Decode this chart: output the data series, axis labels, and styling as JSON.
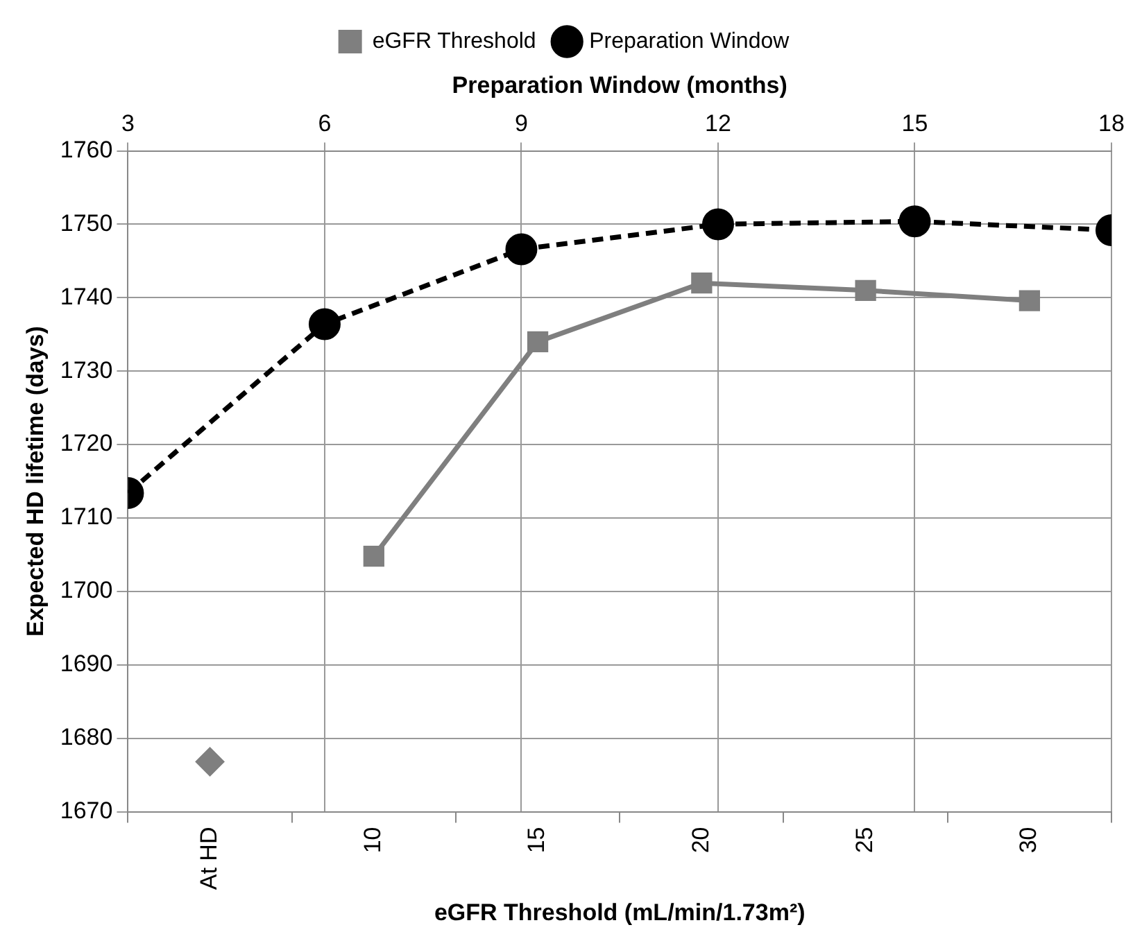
{
  "chart_data": {
    "type": "line",
    "xlabel": "eGFR Threshold (mL/min/1.73m²)",
    "ylabel": "Expected HD lifetime (days)",
    "x2label": "Preparation Window (months)",
    "categories": [
      "At HD",
      "10",
      "15",
      "20",
      "25",
      "30"
    ],
    "series": [
      {
        "name": "eGFR Threshold",
        "color": "#7f7f7f",
        "marker": "square",
        "line_style": "solid",
        "values": [
          null,
          1704.8,
          1734,
          1742,
          1741,
          1739.6
        ]
      },
      {
        "type": "scatter",
        "color": "#7f7f7f",
        "marker": "diamond",
        "values": [
          1676.8,
          null,
          null,
          null,
          null,
          null
        ]
      },
      {
        "name": "Preparation Window",
        "axis": "x2",
        "color": "#000000",
        "marker": "circle",
        "line_style": "dashed",
        "x": [
          3,
          6,
          9,
          12,
          15,
          18
        ],
        "values": [
          1713.4,
          1736.4,
          1746.6,
          1750,
          1750.4,
          1749.2
        ]
      }
    ],
    "ylim": [
      1670,
      1760
    ],
    "yticks": [
      1670,
      1680,
      1690,
      1700,
      1710,
      1720,
      1730,
      1740,
      1750,
      1760
    ],
    "x2lim": [
      3,
      18
    ],
    "x2ticks": [
      3,
      6,
      9,
      12,
      15,
      18
    ],
    "grid": true,
    "legend": "top"
  }
}
